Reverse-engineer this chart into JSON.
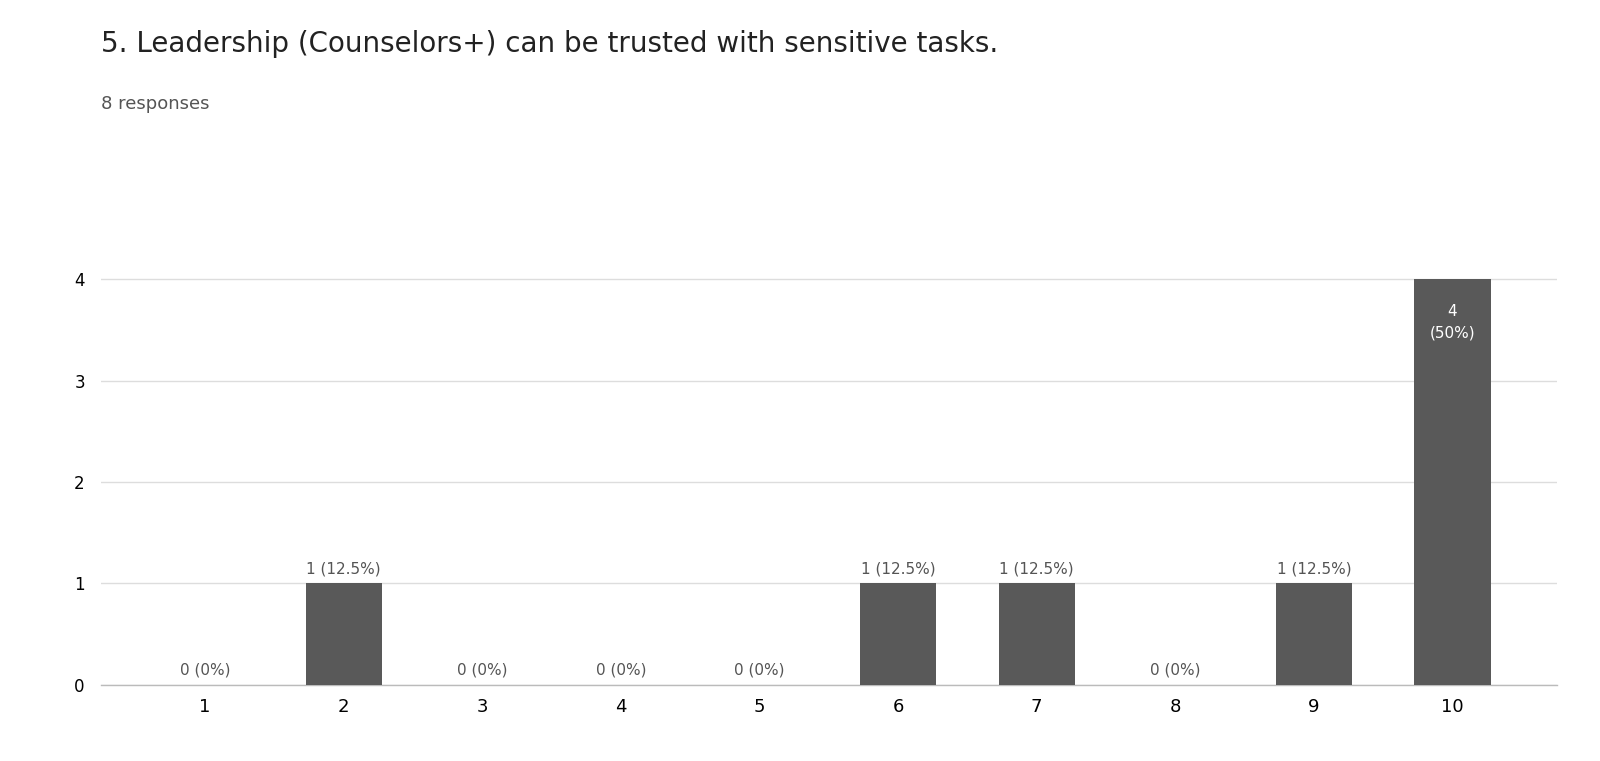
{
  "title": "5. Leadership (Counselors+) can be trusted with sensitive tasks.",
  "subtitle": "8 responses",
  "categories": [
    1,
    2,
    3,
    4,
    5,
    6,
    7,
    8,
    9,
    10
  ],
  "values": [
    0,
    1,
    0,
    0,
    0,
    1,
    1,
    0,
    1,
    4
  ],
  "bar_color": "#595959",
  "annotations": [
    "0 (0%)",
    "1 (12.5%)",
    "0 (0%)",
    "0 (0%)",
    "0 (0%)",
    "1 (12.5%)",
    "1 (12.5%)",
    "0 (0%)",
    "1 (12.5%)",
    "4\n(50%)"
  ],
  "ylim": [
    0,
    4.5
  ],
  "yticks": [
    0,
    1,
    2,
    3,
    4
  ],
  "title_fontsize": 20,
  "subtitle_fontsize": 13,
  "annotation_fontsize": 11,
  "annotation_color_default": "#555555",
  "annotation_color_last": "#ffffff",
  "background_color": "#ffffff",
  "grid_color": "#dddddd",
  "tick_label_fontsize": 13,
  "ytick_label_fontsize": 12
}
